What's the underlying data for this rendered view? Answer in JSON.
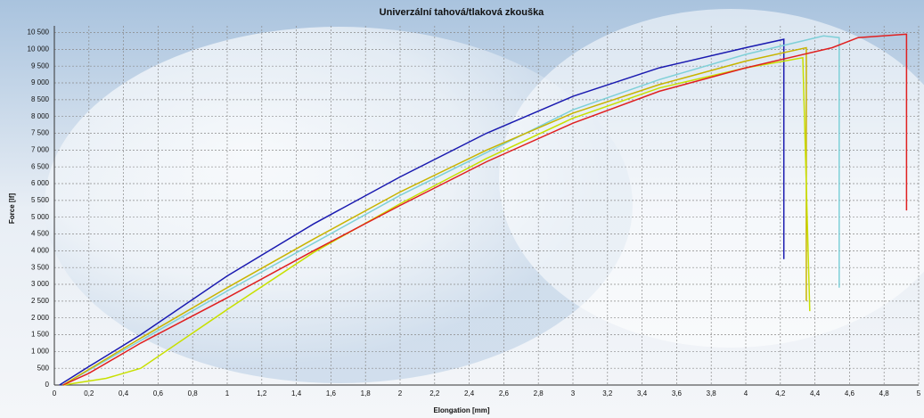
{
  "chart_data": {
    "type": "line",
    "title": "Univerzální tahová/tlaková zkouška",
    "x_label": "Elongation [mm]",
    "y_label": "Force [lf]",
    "xlim": [
      0,
      5
    ],
    "ylim": [
      0,
      10700
    ],
    "xticks": [
      0,
      {
        "value": 0.2,
        "label": "0,2"
      },
      {
        "value": 0.4,
        "label": "0,4"
      },
      {
        "value": 0.6,
        "label": "0,6"
      },
      {
        "value": 0.8,
        "label": "0,8"
      },
      1,
      {
        "value": 1.2,
        "label": "1,2"
      },
      {
        "value": 1.4,
        "label": "1,4"
      },
      {
        "value": 1.6,
        "label": "1,6"
      },
      {
        "value": 1.8,
        "label": "1,8"
      },
      2,
      {
        "value": 2.2,
        "label": "2,2"
      },
      {
        "value": 2.4,
        "label": "2,4"
      },
      {
        "value": 2.6,
        "label": "2,6"
      },
      {
        "value": 2.8,
        "label": "2,8"
      },
      3,
      {
        "value": 3.2,
        "label": "3,2"
      },
      {
        "value": 3.4,
        "label": "3,4"
      },
      {
        "value": 3.6,
        "label": "3,6"
      },
      {
        "value": 3.8,
        "label": "3,8"
      },
      4,
      {
        "value": 4.2,
        "label": "4,2"
      },
      {
        "value": 4.4,
        "label": "4,4"
      },
      {
        "value": 4.6,
        "label": "4,6"
      },
      {
        "value": 4.8,
        "label": "4,8"
      },
      5
    ],
    "yticks": [
      0,
      500,
      {
        "value": 1000,
        "label": "1 000"
      },
      {
        "value": 1500,
        "label": "1 500"
      },
      {
        "value": 2000,
        "label": "2 000"
      },
      {
        "value": 2500,
        "label": "2 500"
      },
      {
        "value": 3000,
        "label": "3 000"
      },
      {
        "value": 3500,
        "label": "3 500"
      },
      {
        "value": 4000,
        "label": "4 000"
      },
      {
        "value": 4500,
        "label": "4 500"
      },
      {
        "value": 5000,
        "label": "5 000"
      },
      {
        "value": 5500,
        "label": "5 500"
      },
      {
        "value": 6000,
        "label": "6 000"
      },
      {
        "value": 6500,
        "label": "6 500"
      },
      {
        "value": 7000,
        "label": "7 000"
      },
      {
        "value": 7500,
        "label": "7 500"
      },
      {
        "value": 8000,
        "label": "8 000"
      },
      {
        "value": 8500,
        "label": "8 500"
      },
      {
        "value": 9000,
        "label": "9 000"
      },
      {
        "value": 9500,
        "label": "9 500"
      },
      {
        "value": 10000,
        "label": "10 000"
      },
      {
        "value": 10500,
        "label": "10 500"
      }
    ],
    "grid": true,
    "series": [
      {
        "color": "#1a1ab0",
        "x": [
          0.03,
          0.2,
          0.5,
          1,
          1.5,
          2,
          2.5,
          3,
          3.5,
          4,
          4.22,
          4.22
        ],
        "values": [
          0,
          550,
          1500,
          3250,
          4800,
          6200,
          7500,
          8600,
          9450,
          10050,
          10300,
          3750
        ]
      },
      {
        "color": "#7fd0d8",
        "x": [
          0.05,
          1,
          2,
          3,
          3.5,
          4,
          4.45,
          4.54,
          4.54
        ],
        "values": [
          0,
          2800,
          5650,
          8200,
          9100,
          9850,
          10400,
          10350,
          2900
        ]
      },
      {
        "color": "#c8b400",
        "x": [
          0.05,
          0.5,
          1,
          1.5,
          2,
          2.5,
          3,
          3.5,
          4,
          4.35,
          4.35
        ],
        "values": [
          0,
          1400,
          2900,
          4350,
          5750,
          7000,
          8100,
          8950,
          9650,
          10050,
          2500
        ]
      },
      {
        "color": "#c8e000",
        "x": [
          0.05,
          0.3,
          0.5,
          1,
          1.5,
          2,
          2.5,
          3,
          3.5,
          4,
          4.33,
          4.37
        ],
        "values": [
          0,
          200,
          500,
          2250,
          3950,
          5400,
          6750,
          7950,
          8850,
          9450,
          9750,
          2200
        ]
      },
      {
        "color": "#e02020",
        "x": [
          0.05,
          0.2,
          0.5,
          1,
          1.5,
          2,
          2.5,
          3,
          3.5,
          4,
          4.5,
          4.65,
          4.93,
          4.93
        ],
        "values": [
          0,
          350,
          1250,
          2600,
          4000,
          5350,
          6650,
          7800,
          8750,
          9450,
          10050,
          10350,
          10450,
          5200
        ]
      }
    ]
  }
}
